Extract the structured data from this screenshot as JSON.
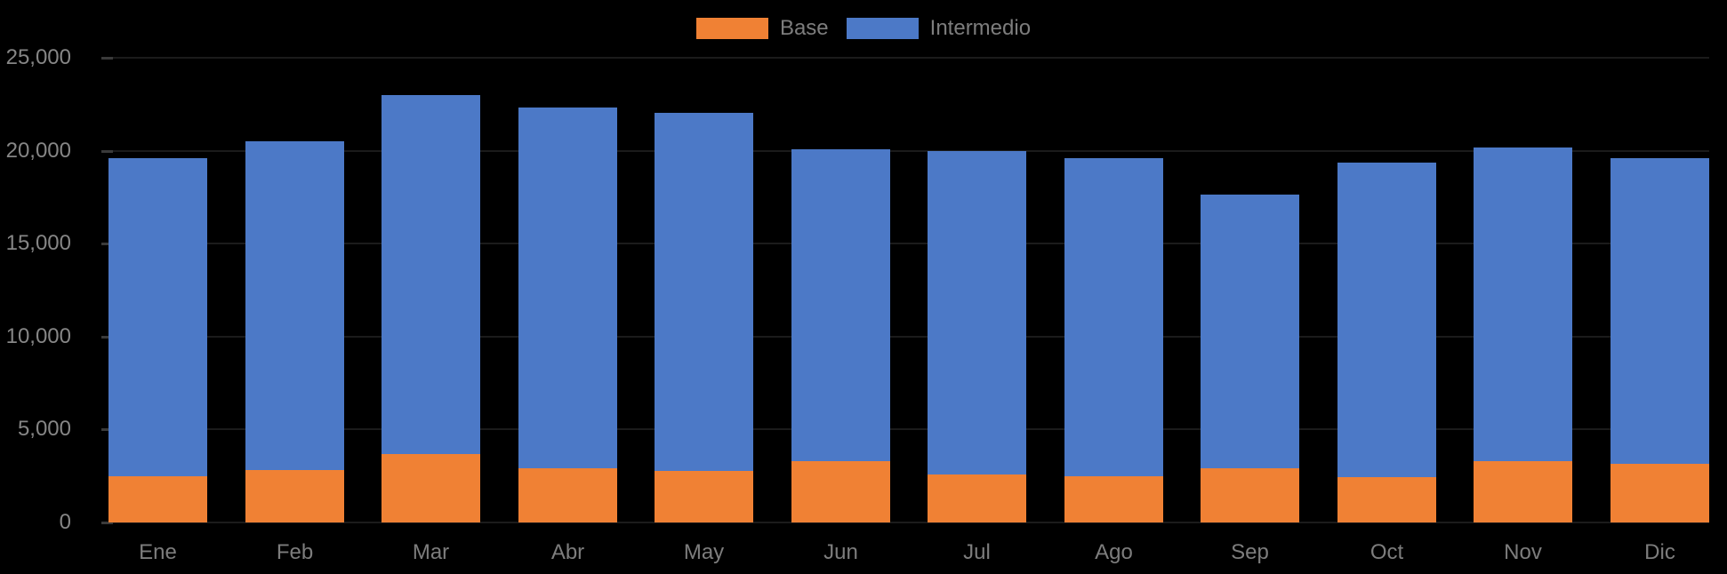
{
  "chart_data": {
    "type": "bar",
    "stacked": true,
    "title": "",
    "xlabel": "",
    "ylabel": "",
    "categories": [
      "Ene",
      "Feb",
      "Mar",
      "Abr",
      "May",
      "Jun",
      "Jul",
      "Ago",
      "Sep",
      "Oct",
      "Nov",
      "Dic"
    ],
    "series": [
      {
        "name": "Base",
        "color": "#F08134",
        "values": [
          2500,
          2800,
          3700,
          2900,
          2750,
          3300,
          2600,
          2500,
          2900,
          2450,
          3300,
          3150
        ]
      },
      {
        "name": "Intermedio",
        "color": "#4C79C7",
        "values": [
          17100,
          17700,
          19300,
          19400,
          19250,
          16800,
          17400,
          17100,
          14700,
          16900,
          16850,
          16450
        ]
      }
    ],
    "stack_totals": [
      19600,
      20500,
      23000,
      22300,
      22000,
      20100,
      20000,
      19600,
      17600,
      19350,
      20150,
      19600
    ],
    "ylim": [
      0,
      25000
    ],
    "y_ticks": [
      {
        "value": 0,
        "label": "0"
      },
      {
        "value": 5000,
        "label": "5,000"
      },
      {
        "value": 10000,
        "label": "10,000"
      },
      {
        "value": 15000,
        "label": "15,000"
      },
      {
        "value": 20000,
        "label": "20,000"
      },
      {
        "value": 25000,
        "label": "25,000"
      }
    ],
    "legend_position": "top-center",
    "grid": false,
    "colors": {
      "background": "#000000",
      "axis_text": "#868686",
      "category_text": "#7D7D7D",
      "legend_text": "#7D7D7D",
      "tick_mark": "#3A3A3A"
    }
  }
}
